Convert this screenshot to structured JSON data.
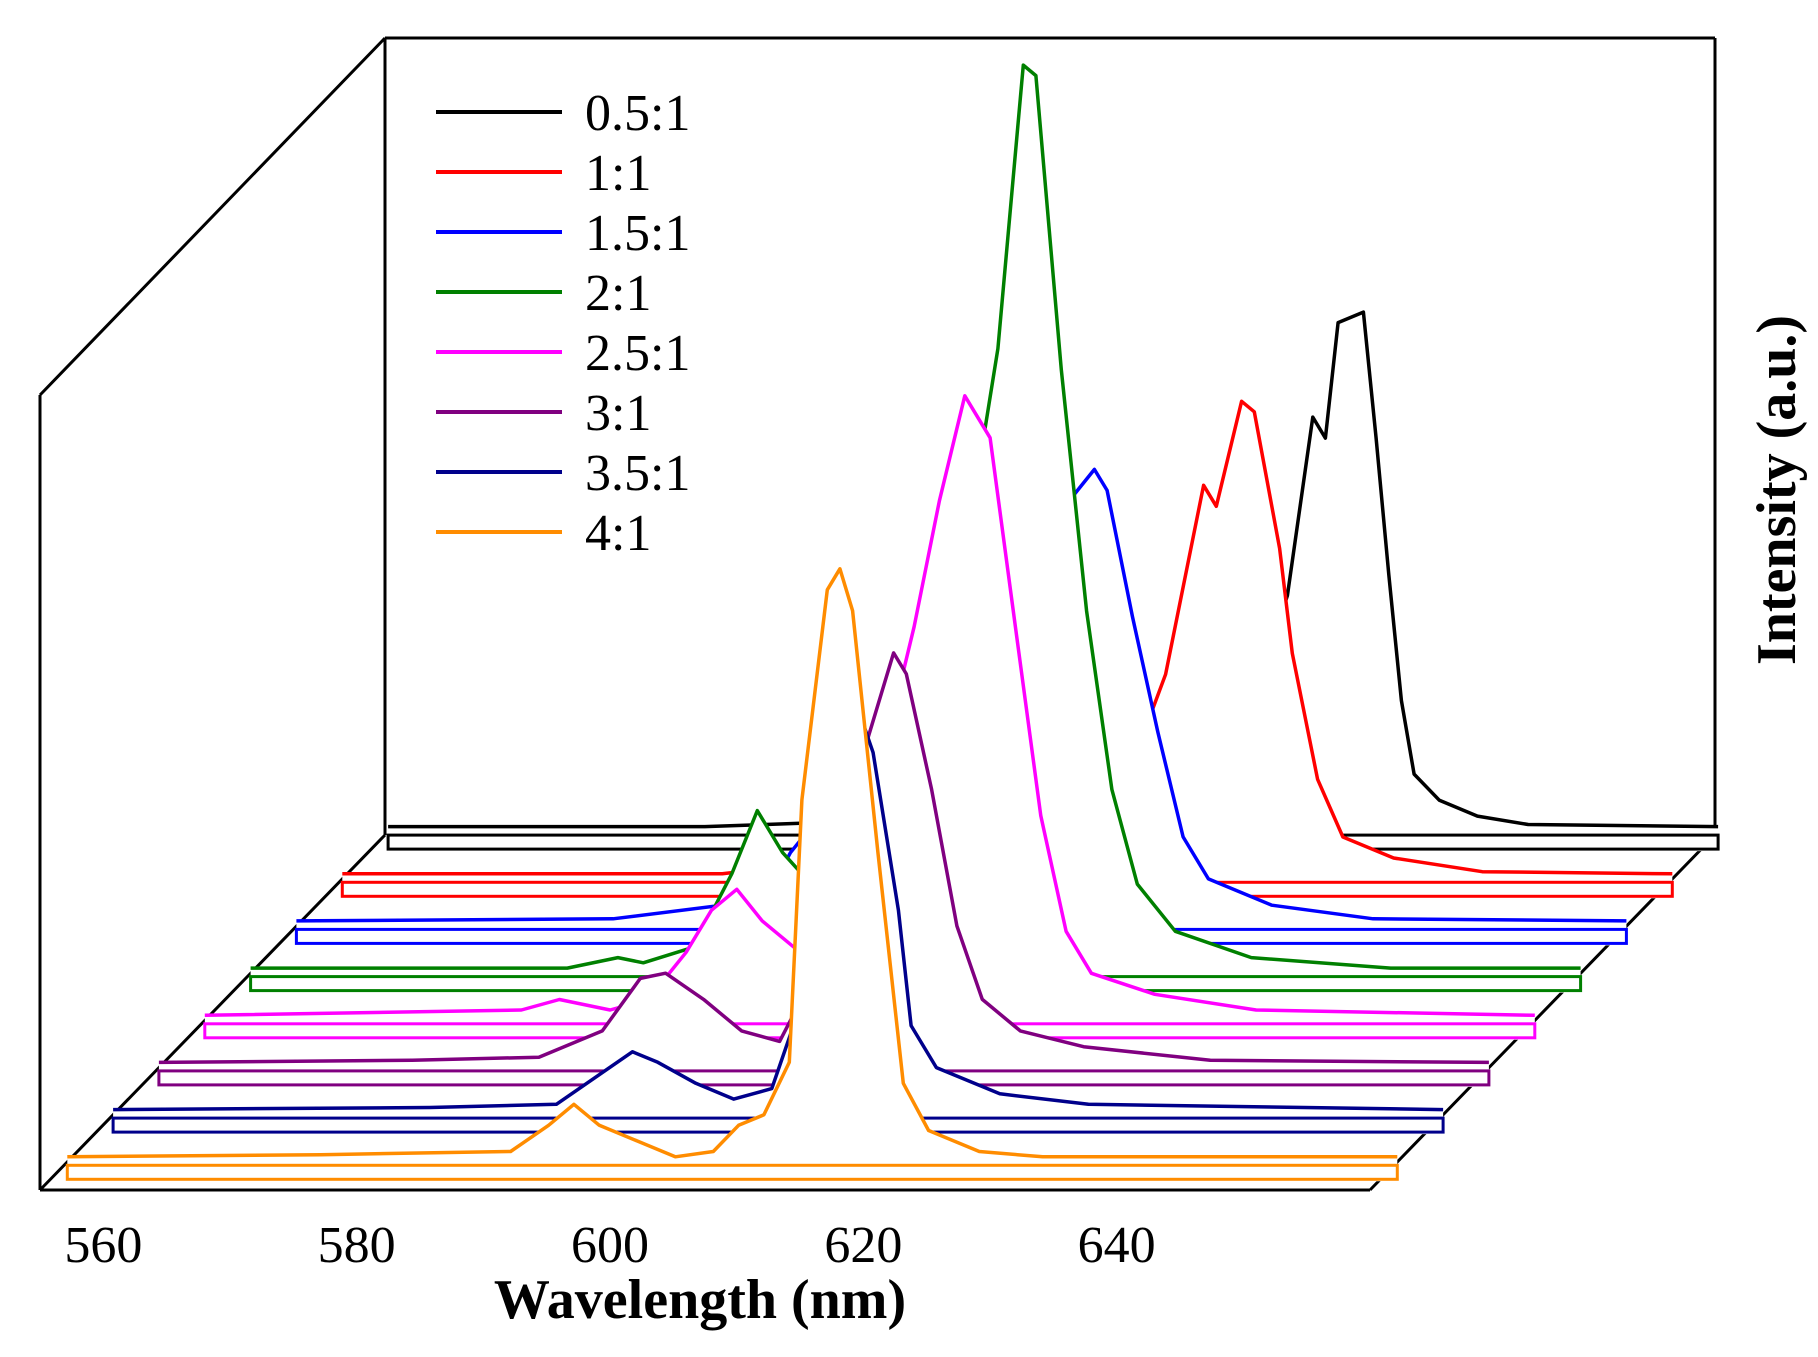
{
  "chart_data": {
    "type": "line",
    "style": "3d-waterfall",
    "title": "",
    "xlabel": "Wavelength (nm)",
    "ylabel": "Intensity (a.u.)",
    "xlim": [
      555,
      660
    ],
    "ylim": [
      0,
      1
    ],
    "xticks": [
      560,
      580,
      600,
      620,
      640
    ],
    "xtick_labels": [
      "560",
      "580",
      "600",
      "620",
      "640"
    ],
    "legend_position": "top-left",
    "grid": false,
    "series": [
      {
        "name": "0.5:1",
        "color": "#000000",
        "points": [
          [
            555,
            0.01
          ],
          [
            580,
            0.01
          ],
          [
            592,
            0.015
          ],
          [
            596,
            0.03
          ],
          [
            599,
            0.075
          ],
          [
            601,
            0.1
          ],
          [
            603,
            0.075
          ],
          [
            606,
            0.04
          ],
          [
            612,
            0.025
          ],
          [
            618,
            0.05
          ],
          [
            623,
            0.12
          ],
          [
            626,
            0.23
          ],
          [
            628,
            0.4
          ],
          [
            629,
            0.38
          ],
          [
            630,
            0.49
          ],
          [
            632,
            0.5
          ],
          [
            633,
            0.38
          ],
          [
            634,
            0.25
          ],
          [
            635,
            0.13
          ],
          [
            636,
            0.06
          ],
          [
            638,
            0.035
          ],
          [
            641,
            0.02
          ],
          [
            645,
            0.012
          ],
          [
            660,
            0.01
          ]
        ]
      },
      {
        "name": "1:1",
        "color": "#ff0000",
        "points": [
          [
            555,
            0.01
          ],
          [
            585,
            0.01
          ],
          [
            592,
            0.02
          ],
          [
            595,
            0.04
          ],
          [
            597,
            0.085
          ],
          [
            599,
            0.105
          ],
          [
            601,
            0.075
          ],
          [
            603,
            0.06
          ],
          [
            605,
            0.04
          ],
          [
            612,
            0.035
          ],
          [
            616,
            0.07
          ],
          [
            620,
            0.2
          ],
          [
            623,
            0.38
          ],
          [
            624,
            0.36
          ],
          [
            626,
            0.46
          ],
          [
            627,
            0.45
          ],
          [
            629,
            0.32
          ],
          [
            630,
            0.22
          ],
          [
            632,
            0.1
          ],
          [
            634,
            0.045
          ],
          [
            638,
            0.025
          ],
          [
            645,
            0.012
          ],
          [
            660,
            0.01
          ]
        ]
      },
      {
        "name": "1.5:1",
        "color": "#0000ff",
        "points": [
          [
            555,
            0.01
          ],
          [
            580,
            0.012
          ],
          [
            592,
            0.03
          ],
          [
            594,
            0.075
          ],
          [
            596,
            0.105
          ],
          [
            598,
            0.085
          ],
          [
            600,
            0.065
          ],
          [
            604,
            0.05
          ],
          [
            606,
            0.08
          ],
          [
            610,
            0.16
          ],
          [
            614,
            0.32
          ],
          [
            616,
            0.41
          ],
          [
            618,
            0.44
          ],
          [
            619,
            0.42
          ],
          [
            621,
            0.3
          ],
          [
            623,
            0.19
          ],
          [
            625,
            0.09
          ],
          [
            627,
            0.05
          ],
          [
            632,
            0.025
          ],
          [
            640,
            0.012
          ],
          [
            660,
            0.01
          ]
        ]
      },
      {
        "name": "2:1",
        "color": "#008000",
        "points": [
          [
            555,
            0.01
          ],
          [
            580,
            0.01
          ],
          [
            584,
            0.02
          ],
          [
            586,
            0.015
          ],
          [
            590,
            0.03
          ],
          [
            593,
            0.1
          ],
          [
            595,
            0.16
          ],
          [
            597,
            0.12
          ],
          [
            600,
            0.08
          ],
          [
            603,
            0.05
          ],
          [
            604,
            0.055
          ],
          [
            607,
            0.15
          ],
          [
            610,
            0.35
          ],
          [
            612,
            0.45
          ],
          [
            614,
            0.6
          ],
          [
            616,
            0.87
          ],
          [
            617,
            0.86
          ],
          [
            619,
            0.58
          ],
          [
            621,
            0.35
          ],
          [
            623,
            0.18
          ],
          [
            625,
            0.09
          ],
          [
            628,
            0.045
          ],
          [
            634,
            0.02
          ],
          [
            645,
            0.01
          ],
          [
            660,
            0.01
          ]
        ]
      },
      {
        "name": "2.5:1",
        "color": "#ff00ff",
        "points": [
          [
            555,
            0.01
          ],
          [
            580,
            0.015
          ],
          [
            583,
            0.025
          ],
          [
            587,
            0.015
          ],
          [
            590,
            0.025
          ],
          [
            593,
            0.07
          ],
          [
            595,
            0.11
          ],
          [
            597,
            0.13
          ],
          [
            599,
            0.1
          ],
          [
            601,
            0.08
          ],
          [
            604,
            0.05
          ],
          [
            606,
            0.08
          ],
          [
            609,
            0.28
          ],
          [
            611,
            0.38
          ],
          [
            613,
            0.5
          ],
          [
            615,
            0.6
          ],
          [
            617,
            0.56
          ],
          [
            619,
            0.38
          ],
          [
            621,
            0.2
          ],
          [
            623,
            0.09
          ],
          [
            625,
            0.05
          ],
          [
            630,
            0.03
          ],
          [
            638,
            0.015
          ],
          [
            660,
            0.01
          ]
        ]
      },
      {
        "name": "3:1",
        "color": "#800080",
        "points": [
          [
            555,
            0.01
          ],
          [
            575,
            0.012
          ],
          [
            585,
            0.015
          ],
          [
            590,
            0.04
          ],
          [
            593,
            0.09
          ],
          [
            595,
            0.095
          ],
          [
            598,
            0.07
          ],
          [
            601,
            0.04
          ],
          [
            604,
            0.03
          ],
          [
            607,
            0.1
          ],
          [
            609,
            0.26
          ],
          [
            611,
            0.32
          ],
          [
            613,
            0.4
          ],
          [
            614,
            0.38
          ],
          [
            616,
            0.27
          ],
          [
            618,
            0.14
          ],
          [
            620,
            0.07
          ],
          [
            623,
            0.04
          ],
          [
            628,
            0.025
          ],
          [
            638,
            0.012
          ],
          [
            660,
            0.01
          ]
        ]
      },
      {
        "name": "3.5:1",
        "color": "#00008b",
        "points": [
          [
            555,
            0.01
          ],
          [
            580,
            0.012
          ],
          [
            590,
            0.015
          ],
          [
            593,
            0.04
          ],
          [
            596,
            0.065
          ],
          [
            598,
            0.055
          ],
          [
            601,
            0.035
          ],
          [
            604,
            0.02
          ],
          [
            607,
            0.03
          ],
          [
            609,
            0.1
          ],
          [
            611,
            0.3
          ],
          [
            613,
            0.42
          ],
          [
            615,
            0.35
          ],
          [
            617,
            0.2
          ],
          [
            618,
            0.09
          ],
          [
            620,
            0.05
          ],
          [
            625,
            0.025
          ],
          [
            632,
            0.015
          ],
          [
            660,
            0.01
          ]
        ]
      },
      {
        "name": "4:1",
        "color": "#ff8c00",
        "points": [
          [
            555,
            0.01
          ],
          [
            575,
            0.012
          ],
          [
            590,
            0.015
          ],
          [
            593,
            0.04
          ],
          [
            595,
            0.06
          ],
          [
            597,
            0.04
          ],
          [
            600,
            0.025
          ],
          [
            603,
            0.01
          ],
          [
            606,
            0.015
          ],
          [
            608,
            0.04
          ],
          [
            610,
            0.05
          ],
          [
            612,
            0.1
          ],
          [
            613,
            0.35
          ],
          [
            614,
            0.45
          ],
          [
            615,
            0.55
          ],
          [
            616,
            0.57
          ],
          [
            617,
            0.53
          ],
          [
            619,
            0.3
          ],
          [
            621,
            0.08
          ],
          [
            623,
            0.035
          ],
          [
            627,
            0.015
          ],
          [
            632,
            0.01
          ],
          [
            660,
            0.01
          ]
        ]
      }
    ]
  }
}
